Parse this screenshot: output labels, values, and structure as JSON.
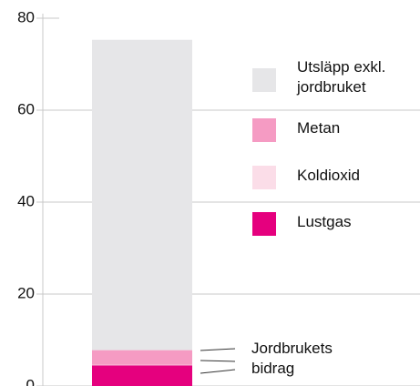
{
  "chart_data": {
    "type": "stacked-bar",
    "ylim": [
      0,
      80
    ],
    "yticks": [
      0,
      20,
      40,
      60,
      80
    ],
    "grid": true,
    "series": [
      {
        "name": "Lustgas",
        "color": "#e5007e",
        "values": [
          4.5
        ]
      },
      {
        "name": "Koldioxid",
        "color": "#fbdde8",
        "values": [
          0.1
        ]
      },
      {
        "name": "Metan",
        "color": "#f59bc3",
        "values": [
          3.2
        ]
      },
      {
        "name": "Utsläpp exkl. jordbruket",
        "color": "#e6e6e8",
        "values": [
          67.5
        ]
      }
    ],
    "annotation": "Jordbrukets bidrag"
  }
}
